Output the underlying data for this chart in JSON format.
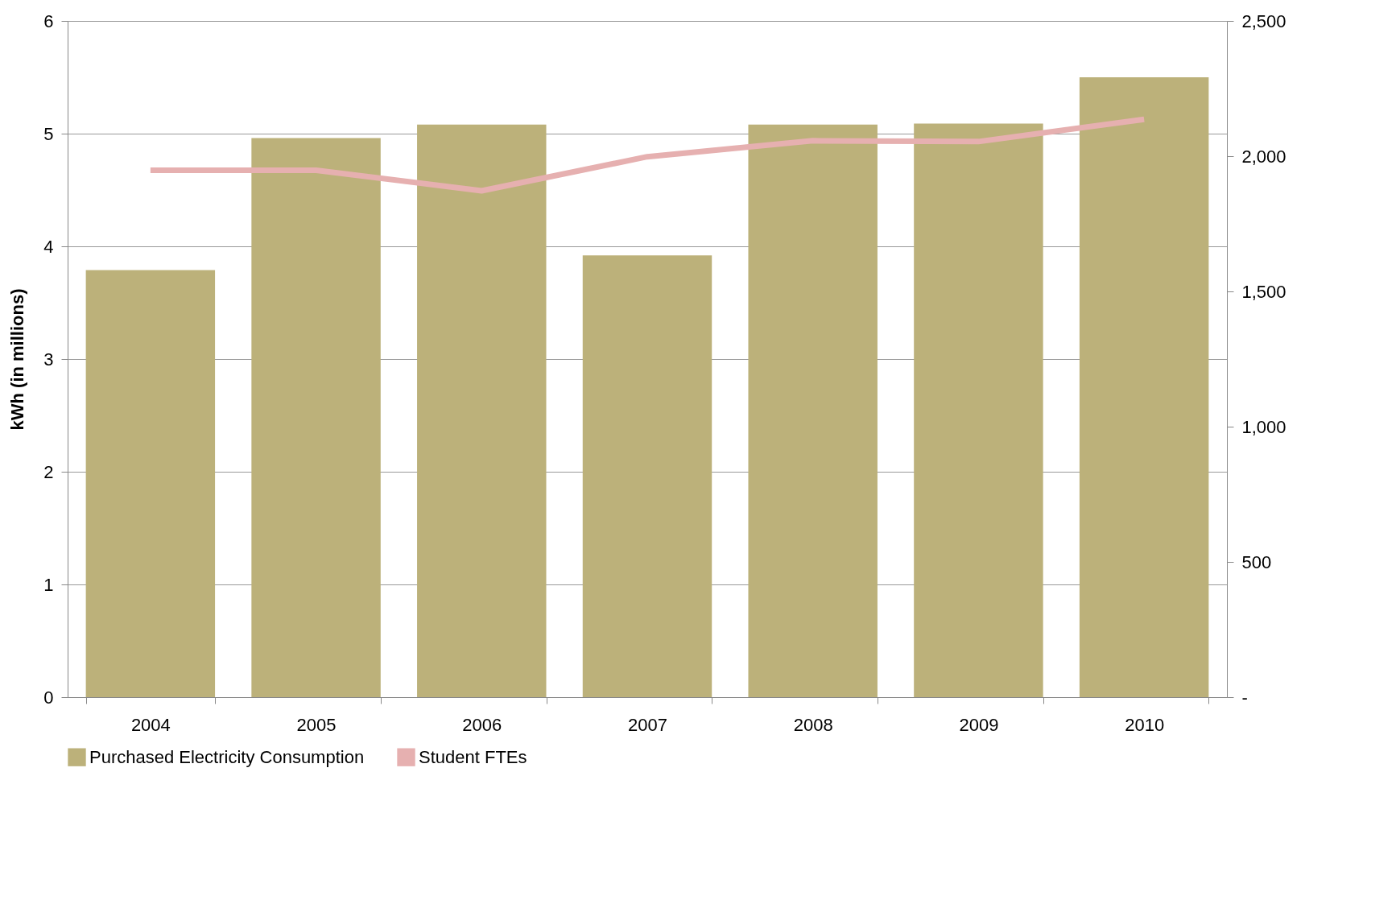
{
  "chart_data": {
    "type": "bar",
    "ylabel": "kWh (in millions)",
    "categories": [
      "2004",
      "2005",
      "2006",
      "2007",
      "2008",
      "2009",
      "2010"
    ],
    "series": [
      {
        "name": "Purchased Electricity Consumption",
        "color": "#bcb17a",
        "values": [
          3.79,
          4.96,
          5.08,
          3.92,
          5.08,
          5.09,
          5.5
        ]
      },
      {
        "name": "Student FTEs",
        "type": "line",
        "axis": "y2",
        "color": "#e6b0b0",
        "values": [
          1948,
          1948,
          1872,
          1998,
          2057,
          2054,
          2136
        ]
      }
    ],
    "ylim": [
      0,
      6
    ],
    "yticks": [
      0,
      1,
      2,
      3,
      4,
      5,
      6
    ],
    "y2lim": [
      0,
      2500
    ],
    "y2ticks": [
      {
        "value": 0,
        "label": "-"
      },
      {
        "value": 500,
        "label": "500"
      },
      {
        "value": 1000,
        "label": "1,000"
      },
      {
        "value": 1500,
        "label": "1,500"
      },
      {
        "value": 2000,
        "label": "2,000"
      },
      {
        "value": 2500,
        "label": "2,500"
      }
    ],
    "grid": "y",
    "legend": "bottom",
    "marker": "none",
    "line_style": "solid"
  }
}
